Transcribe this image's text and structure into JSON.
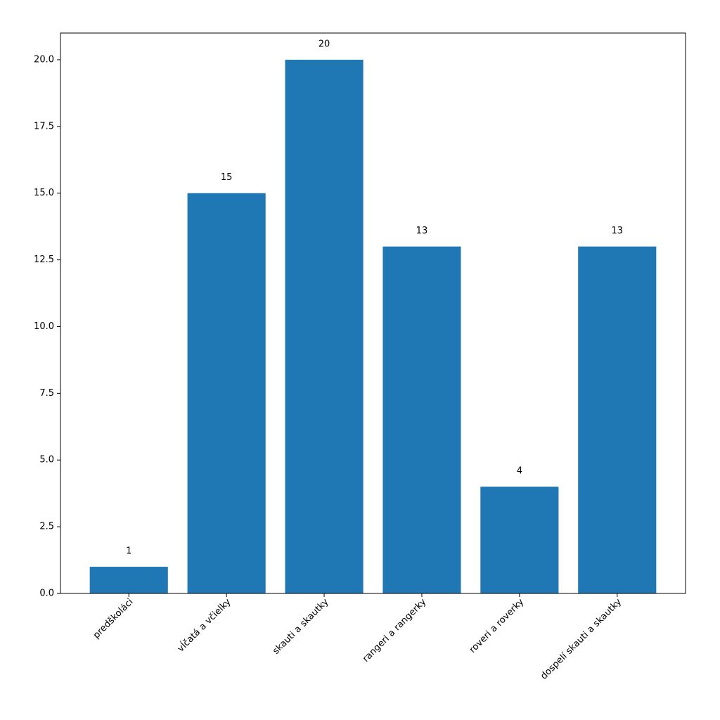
{
  "chart_data": {
    "type": "bar",
    "categories": [
      "predškoláci",
      "vĺčatá a včielky",
      "skauti a skautky",
      "rangeri a rangerky",
      "roveri a roverky",
      "dospelí skauti a skautky"
    ],
    "values": [
      1,
      15,
      20,
      13,
      4,
      13
    ],
    "color": "#1f77b4",
    "ylim": [
      0,
      21
    ],
    "yticks": [
      {
        "value": 0,
        "label": "0.0"
      },
      2.5,
      {
        "value": 5,
        "label": "5.0"
      },
      7.5,
      {
        "value": 10,
        "label": "10.0"
      },
      12.5,
      {
        "value": 15,
        "label": "15.0"
      },
      17.5,
      {
        "value": 20,
        "label": "20.0"
      }
    ],
    "grid": false
  }
}
